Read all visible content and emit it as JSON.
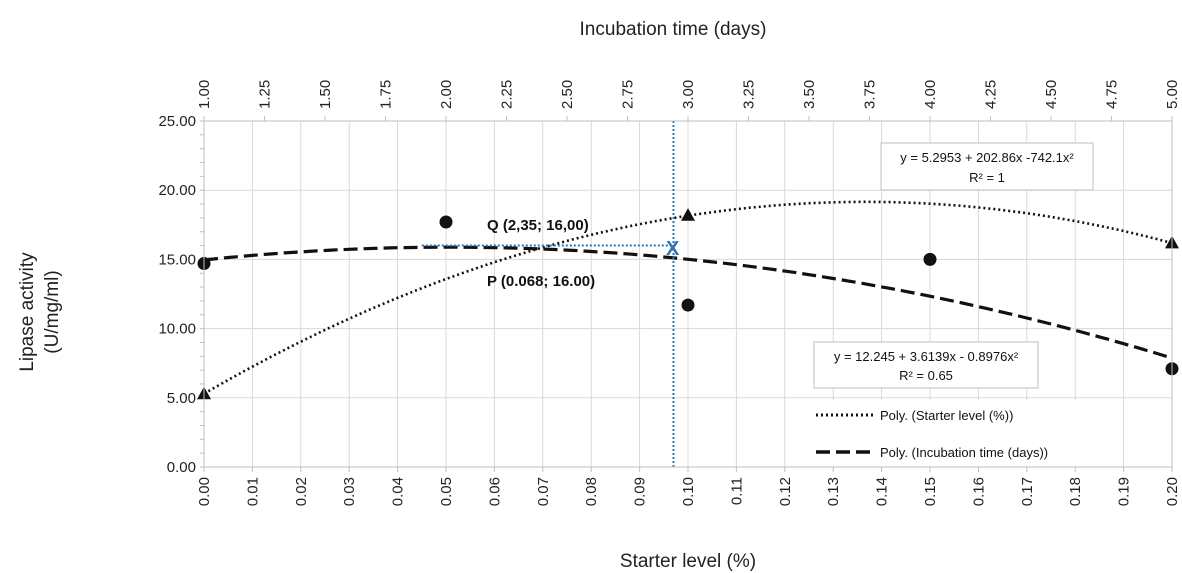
{
  "chart_data": {
    "type": "scatter",
    "title": "",
    "xlabel_bottom": "Starter level (%)",
    "xlabel_top": "Incubation time (days)",
    "ylabel_line1": "Lipase activity",
    "ylabel_line2": "(U/mg/ml)",
    "x_bottom_range": [
      0,
      0.2
    ],
    "x_bottom_ticks": [
      "0.00",
      "0.01",
      "0.02",
      "0.03",
      "0.04",
      "0.05",
      "0.06",
      "0.07",
      "0.08",
      "0.09",
      "0.10",
      "0.11",
      "0.12",
      "0.13",
      "0.14",
      "0.15",
      "0.16",
      "0.17",
      "0.18",
      "0.19",
      "0.20"
    ],
    "x_top_range": [
      1,
      5
    ],
    "x_top_ticks": [
      "1.00",
      "1.25",
      "1.50",
      "1.75",
      "2.00",
      "2.25",
      "2.50",
      "2.75",
      "3.00",
      "3.25",
      "3.50",
      "3.75",
      "4.00",
      "4.25",
      "4.50",
      "4.75",
      "5.00"
    ],
    "y_range": [
      0,
      25
    ],
    "y_ticks": [
      "0.00",
      "5.00",
      "10.00",
      "15.00",
      "20.00",
      "25.00"
    ],
    "grid": true,
    "series": [
      {
        "marker": "triangle",
        "axis": "bottom",
        "points": [
          [
            0.0,
            5.3
          ],
          [
            0.1,
            18.2
          ],
          [
            0.2,
            16.2
          ]
        ],
        "trend_name": "Poly. (Starter level (%))",
        "trend_style": "dotted",
        "coefficients": [
          5.2953,
          202.86,
          -742.1
        ],
        "equation": "y = 5.2953 + 202.86x -742.1x²",
        "r2": "R² = 1"
      },
      {
        "marker": "circle",
        "axis": "top",
        "points": [
          [
            1,
            14.7
          ],
          [
            2,
            17.7
          ],
          [
            3,
            11.7
          ],
          [
            4,
            15.0
          ],
          [
            5,
            7.1
          ]
        ],
        "trend_name": "Poly. (Incubation time (days))",
        "trend_style": "dashed",
        "coefficients": [
          12.245,
          3.6139,
          -0.8976
        ],
        "equation": "y = 12.245 + 3.6139x - 0.8976x²",
        "r2": "R² = 0.65"
      }
    ],
    "annotations": [
      {
        "text": "Q (2,35; 16,00)"
      },
      {
        "text": "P (0.068; 16.00)"
      },
      {
        "text": "X",
        "color": "#2e75b6"
      }
    ],
    "optimum": {
      "x_bottom": 0.097,
      "y": 16.0,
      "line_color": "#2e75b6"
    },
    "legend_placement": "bottom-right"
  }
}
